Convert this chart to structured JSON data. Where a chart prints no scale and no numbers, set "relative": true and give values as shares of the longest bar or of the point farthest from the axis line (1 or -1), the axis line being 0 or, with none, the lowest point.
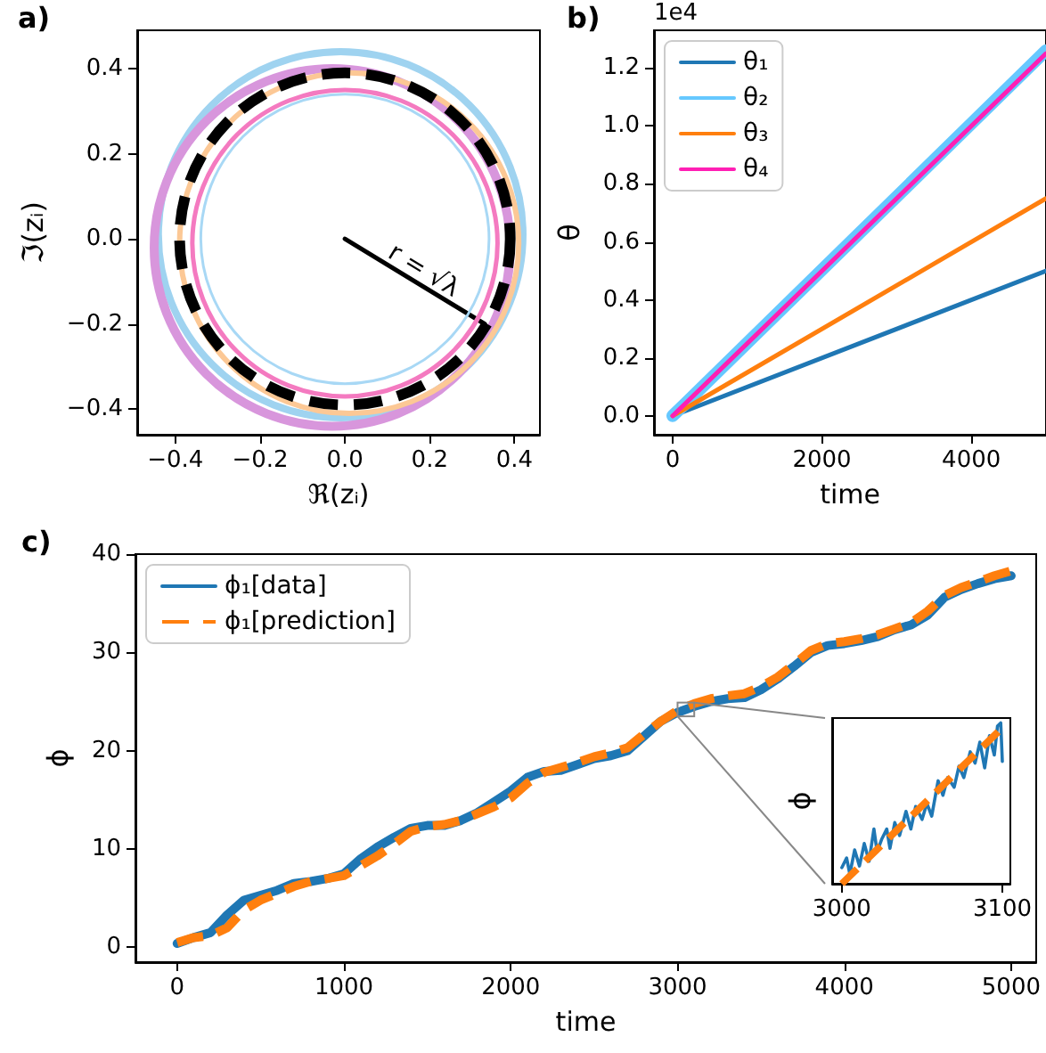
{
  "chart_data": [
    {
      "type": "line",
      "xlabel": "ℜ(zᵢ)",
      "ylabel": "ℑ(zᵢ)",
      "annotations": [
        "a)",
        {
          "text": "r = √λ",
          "x": 0.17,
          "y": -0.1
        }
      ],
      "xlim": [
        -0.49,
        0.46
      ],
      "ylim": [
        -0.46,
        0.49
      ],
      "xticks": [
        {
          "value": -0.4,
          "label": "−0.4"
        },
        {
          "value": -0.2,
          "label": "−0.2"
        },
        {
          "value": 0,
          "label": "0.0"
        },
        0.2,
        0.4
      ],
      "yticks": [
        {
          "value": -0.4,
          "label": "−0.4"
        },
        {
          "value": -0.2,
          "label": "−0.2"
        },
        {
          "value": 0,
          "label": "0.0"
        },
        0.2,
        0.4
      ],
      "grid": false,
      "marker": "none",
      "line_style": "solid",
      "series": [
        {
          "color": "#000000",
          "x": [
            0,
            0.33
          ],
          "values": [
            0,
            -0.2
          ]
        }
      ]
    },
    {
      "type": "line",
      "xlabel": "time",
      "ylabel": "θ",
      "annotations": [
        "b)",
        "1e4"
      ],
      "xlim": [
        -250,
        5000
      ],
      "ylim": [
        -0.065,
        1.33
      ],
      "xticks": [
        0,
        2000,
        4000
      ],
      "yticks": [
        {
          "value": 0,
          "label": "0.0"
        },
        0.2,
        0.4,
        0.6,
        0.8,
        {
          "value": 1,
          "label": "1.0"
        },
        1.2
      ],
      "grid": false,
      "marker": "none",
      "line_style": "solid",
      "legend": "top left",
      "x": [
        0,
        5000
      ],
      "series": [
        {
          "name": "θ₁",
          "color": "#1f77b4",
          "values": [
            0,
            0.5
          ]
        },
        {
          "name": "θ₂",
          "color": "#66c8ff",
          "values": [
            0,
            1.26
          ]
        },
        {
          "name": "θ₃",
          "color": "#ff7f0e",
          "values": [
            0,
            0.75
          ]
        },
        {
          "name": "θ₄",
          "color": "#ff1fb4",
          "values": [
            0,
            1.25
          ]
        }
      ]
    },
    {
      "type": "line",
      "xlabel": "time",
      "ylabel": "ϕ",
      "annotations": [
        "c)"
      ],
      "xlim": [
        -250,
        5150
      ],
      "ylim": [
        -1.5,
        40
      ],
      "xticks": [
        0,
        1000,
        2000,
        3000,
        4000,
        5000
      ],
      "yticks": [
        0,
        10,
        20,
        30,
        40
      ],
      "grid": false,
      "marker": "none",
      "legend": "top left",
      "x": [
        0,
        100,
        200,
        300,
        400,
        500,
        600,
        700,
        800,
        900,
        1000,
        1100,
        1200,
        1300,
        1400,
        1500,
        1600,
        1700,
        1800,
        1900,
        2000,
        2100,
        2200,
        2300,
        2400,
        2500,
        2600,
        2700,
        2800,
        2900,
        3000,
        3100,
        3200,
        3300,
        3400,
        3500,
        3600,
        3700,
        3800,
        3900,
        4000,
        4100,
        4200,
        4300,
        4400,
        4500,
        4600,
        4700,
        4800,
        4900,
        5000
      ],
      "series": [
        {
          "name": "ϕ₁[data]",
          "color": "#1f77b4",
          "line_style": "solid",
          "values": [
            0.4,
            1.0,
            1.5,
            3.3,
            4.8,
            5.3,
            5.8,
            6.5,
            6.7,
            7.0,
            7.5,
            9.0,
            10.2,
            11.2,
            12.1,
            12.4,
            12.4,
            12.9,
            13.7,
            14.8,
            15.9,
            17.3,
            17.9,
            18.0,
            18.6,
            19.2,
            19.5,
            20.0,
            21.5,
            23.0,
            23.9,
            24.5,
            25.0,
            25.3,
            25.4,
            26.2,
            27.3,
            28.6,
            30.0,
            30.7,
            30.9,
            31.2,
            31.6,
            32.3,
            32.8,
            33.8,
            35.6,
            36.4,
            37.0,
            37.5,
            37.8
          ]
        },
        {
          "name": "ϕ₁[prediction]",
          "color": "#ff7f0e",
          "line_style": "dashed",
          "values": [
            0.5,
            1.0,
            1.2,
            2.0,
            3.8,
            4.8,
            5.5,
            6.2,
            6.7,
            7.0,
            7.3,
            8.3,
            9.3,
            10.5,
            11.8,
            12.3,
            12.5,
            12.9,
            13.6,
            14.3,
            15.2,
            16.7,
            17.8,
            18.3,
            18.8,
            19.4,
            19.8,
            20.3,
            21.7,
            23.0,
            24.1,
            24.8,
            25.3,
            25.6,
            25.8,
            26.5,
            27.5,
            28.8,
            30.2,
            30.9,
            31.1,
            31.4,
            31.8,
            32.4,
            33.0,
            34.2,
            35.8,
            36.6,
            37.2,
            37.8,
            38.3
          ]
        }
      ]
    },
    {
      "type": "line",
      "ylabel": "ϕ",
      "relative": true,
      "xlim": [
        2994,
        3105
      ],
      "xticks": [
        3000,
        3100
      ],
      "tick_labels": "x",
      "grid": false,
      "marker": "none",
      "series": [
        {
          "color": "#1f77b4",
          "line_style": "solid",
          "x": [
            3000,
            3003,
            3005,
            3008,
            3011,
            3014,
            3017,
            3020,
            3022,
            3025,
            3028,
            3030,
            3033,
            3036,
            3040,
            3043,
            3046,
            3050,
            3053,
            3056,
            3060,
            3063,
            3066,
            3070,
            3073,
            3076,
            3080,
            3083,
            3086,
            3089,
            3092,
            3095,
            3097,
            3099,
            3100
          ],
          "values": [
            0.1,
            0.16,
            0.06,
            0.21,
            0.11,
            0.25,
            0.14,
            0.34,
            0.2,
            0.28,
            0.34,
            0.22,
            0.38,
            0.3,
            0.45,
            0.34,
            0.48,
            0.4,
            0.5,
            0.42,
            0.64,
            0.55,
            0.66,
            0.6,
            0.73,
            0.66,
            0.82,
            0.75,
            0.88,
            0.72,
            0.92,
            0.8,
            0.98,
            1.0,
            0.76
          ]
        },
        {
          "color": "#ff7f0e",
          "line_style": "dashed",
          "x": [
            3000,
            3100
          ],
          "values": [
            0,
            0.97
          ]
        }
      ]
    }
  ]
}
